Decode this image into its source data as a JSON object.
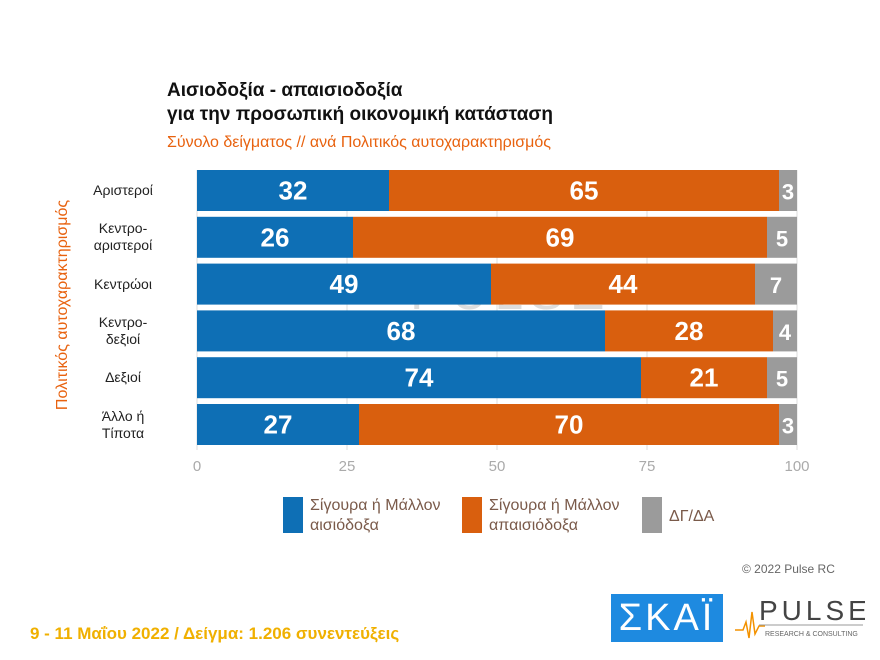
{
  "title_line1": "Αισιοδοξία - απαισιοδοξία",
  "title_line2": "για την προσωπική οικονομική κατάσταση",
  "subtitle": "Σύνολο δείγματος // ανά Πολιτικός αυτοχαρακτηρισμός",
  "footer": "9 - 11  Μαΐου  2022  /  Δείγμα:  1.206 συνεντεύξεις",
  "copyright": "© 2022 Pulse RC",
  "logos": {
    "skai": "ΣΚΑΪ",
    "pulse": "PULSE",
    "pulse_sub": "RESEARCH & CONSULTING"
  },
  "chart_data": {
    "type": "bar",
    "orientation": "horizontal",
    "stacked": true,
    "ylabel": "Πολιτικός αυτοχαρακτηρισμός",
    "categories": [
      [
        "Αριστεροί"
      ],
      [
        "Κεντρο-",
        "αριστεροί"
      ],
      [
        "Κεντρώοι"
      ],
      [
        "Κεντρο-",
        "δεξιοί"
      ],
      [
        "Δεξιοί"
      ],
      [
        "Άλλο ή",
        "Τίποτα"
      ]
    ],
    "xlim": [
      0,
      100
    ],
    "xticks": [
      "0",
      "25",
      "50",
      "75",
      "100"
    ],
    "grid": true,
    "legend_position": "bottom",
    "series": [
      {
        "name": "Σίγουρα ή Μάλλον αισιόδοξα",
        "legend": [
          "Σίγουρα ή Μάλλον",
          "αισιόδοξα"
        ],
        "color": "#0e6fb5",
        "values": [
          32,
          26,
          49,
          68,
          74,
          27
        ]
      },
      {
        "name": "Σίγουρα ή Μάλλον απαισιόδοξα",
        "legend": [
          "Σίγουρα ή Μάλλον",
          "απαισιόδοξα"
        ],
        "color": "#d95f0e",
        "values": [
          65,
          69,
          44,
          28,
          21,
          70
        ]
      },
      {
        "name": "ΔΓ/ΔΑ",
        "legend": [
          "ΔΓ/ΔΑ"
        ],
        "color": "#9b9b9b",
        "values": [
          3,
          5,
          7,
          4,
          5,
          3
        ]
      }
    ]
  }
}
